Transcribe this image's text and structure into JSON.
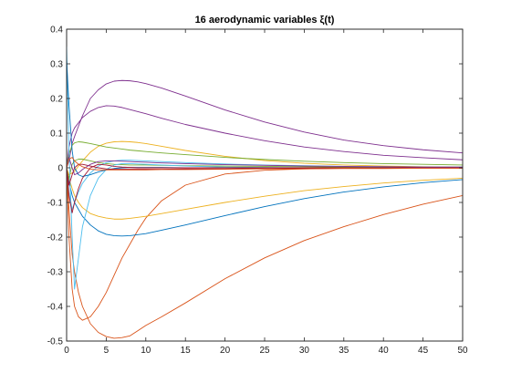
{
  "chart_data": {
    "type": "line",
    "title": "16 aerodynamic variables ξ(t)",
    "xlabel": "",
    "ylabel": "",
    "xlim": [
      0,
      50
    ],
    "ylim": [
      -0.5,
      0.4
    ],
    "xticks": [
      0,
      5,
      10,
      15,
      20,
      25,
      30,
      35,
      40,
      45,
      50
    ],
    "yticks": [
      -0.5,
      -0.4,
      -0.3,
      -0.2,
      -0.1,
      0,
      0.1,
      0.2,
      0.3,
      0.4
    ],
    "xtick_labels": [
      "0",
      "5",
      "10",
      "15",
      "20",
      "25",
      "30",
      "35",
      "40",
      "45",
      "50"
    ],
    "ytick_labels": [
      "-0.5",
      "-0.4",
      "-0.3",
      "-0.2",
      "-0.1",
      "0",
      "0.1",
      "0.2",
      "0.3",
      "0.4"
    ],
    "grid": false,
    "legend": "none",
    "x": [
      0,
      0.3,
      0.7,
      1,
      1.5,
      2,
      3,
      4,
      5,
      6,
      7,
      8,
      9,
      10,
      12,
      15,
      20,
      25,
      30,
      35,
      40,
      45,
      50
    ],
    "series": [
      {
        "color": "#7E2F8E",
        "values": [
          0.0,
          0.02,
          0.07,
          0.09,
          0.12,
          0.15,
          0.2,
          0.225,
          0.242,
          0.25,
          0.252,
          0.251,
          0.248,
          0.243,
          0.23,
          0.207,
          0.167,
          0.132,
          0.103,
          0.08,
          0.064,
          0.052,
          0.043
        ]
      },
      {
        "color": "#7E2F8E",
        "values": [
          0.0,
          0.06,
          0.1,
          0.115,
          0.13,
          0.145,
          0.163,
          0.174,
          0.179,
          0.178,
          0.174,
          0.168,
          0.162,
          0.156,
          0.143,
          0.125,
          0.1,
          0.078,
          0.06,
          0.047,
          0.036,
          0.029,
          0.023
        ]
      },
      {
        "color": "#D95319",
        "values": [
          0.0,
          -0.12,
          -0.25,
          -0.3,
          -0.36,
          -0.4,
          -0.45,
          -0.475,
          -0.487,
          -0.492,
          -0.49,
          -0.485,
          -0.47,
          -0.455,
          -0.43,
          -0.39,
          -0.32,
          -0.26,
          -0.21,
          -0.17,
          -0.135,
          -0.105,
          -0.08
        ]
      },
      {
        "color": "#D95319",
        "values": [
          0.0,
          -0.2,
          -0.35,
          -0.4,
          -0.43,
          -0.44,
          -0.43,
          -0.4,
          -0.36,
          -0.31,
          -0.26,
          -0.22,
          -0.18,
          -0.145,
          -0.095,
          -0.05,
          -0.018,
          -0.007,
          -0.003,
          -0.001,
          0.0,
          0.0,
          0.0
        ]
      },
      {
        "color": "#0072BD",
        "values": [
          0.0,
          -0.04,
          -0.08,
          -0.1,
          -0.12,
          -0.14,
          -0.165,
          -0.182,
          -0.192,
          -0.196,
          -0.197,
          -0.196,
          -0.193,
          -0.19,
          -0.18,
          -0.165,
          -0.138,
          -0.112,
          -0.089,
          -0.07,
          -0.055,
          -0.043,
          -0.034
        ]
      },
      {
        "color": "#EDB120",
        "values": [
          0.0,
          -0.03,
          -0.06,
          -0.08,
          -0.1,
          -0.115,
          -0.132,
          -0.14,
          -0.145,
          -0.148,
          -0.148,
          -0.146,
          -0.143,
          -0.14,
          -0.132,
          -0.12,
          -0.1,
          -0.082,
          -0.066,
          -0.054,
          -0.044,
          -0.036,
          -0.03
        ]
      },
      {
        "color": "#EDB120",
        "values": [
          0.0,
          -0.02,
          -0.015,
          -0.01,
          0.005,
          0.02,
          0.045,
          0.062,
          0.071,
          0.075,
          0.076,
          0.075,
          0.073,
          0.07,
          0.062,
          0.05,
          0.033,
          0.021,
          0.013,
          0.008,
          0.005,
          0.003,
          0.002
        ]
      },
      {
        "color": "#77AC30",
        "values": [
          0.0,
          0.04,
          0.065,
          0.072,
          0.075,
          0.074,
          0.07,
          0.065,
          0.06,
          0.057,
          0.054,
          0.051,
          0.049,
          0.047,
          0.043,
          0.038,
          0.03,
          0.024,
          0.019,
          0.015,
          0.012,
          0.01,
          0.008
        ]
      },
      {
        "color": "#77AC30",
        "values": [
          0.0,
          -0.03,
          0.01,
          0.02,
          0.025,
          0.025,
          0.02,
          0.015,
          0.012,
          0.01,
          0.009,
          0.008,
          0.008,
          0.008,
          0.007,
          0.006,
          0.005,
          0.004,
          0.003,
          0.002,
          0.002,
          0.001,
          0.001
        ]
      },
      {
        "color": "#4DBEEE",
        "values": [
          0.35,
          0.05,
          -0.2,
          -0.35,
          -0.26,
          -0.17,
          -0.08,
          -0.03,
          -0.005,
          0.008,
          0.012,
          0.012,
          0.011,
          0.01,
          0.008,
          0.005,
          0.002,
          0.001,
          0.0,
          0.0,
          0.0,
          0.0,
          0.0
        ]
      },
      {
        "color": "#4DBEEE",
        "values": [
          0.0,
          -0.07,
          -0.12,
          -0.1,
          -0.07,
          -0.045,
          -0.015,
          0.005,
          0.015,
          0.02,
          0.022,
          0.022,
          0.021,
          0.02,
          0.018,
          0.015,
          0.011,
          0.008,
          0.006,
          0.004,
          0.003,
          0.002,
          0.002
        ]
      },
      {
        "color": "#0072BD",
        "values": [
          0.31,
          0.18,
          0.05,
          0.0,
          -0.02,
          -0.025,
          -0.02,
          -0.012,
          -0.006,
          -0.002,
          0.0,
          0.001,
          0.001,
          0.001,
          0.001,
          0.0,
          0.0,
          0.0,
          0.0,
          0.0,
          0.0,
          0.0,
          0.0
        ]
      },
      {
        "color": "#A2142F",
        "values": [
          0.0,
          -0.08,
          -0.13,
          -0.1,
          -0.06,
          -0.03,
          0.0,
          0.01,
          0.008,
          0.004,
          0.002,
          0.001,
          0.0,
          0.0,
          0.0,
          0.0,
          0.0,
          0.0,
          0.0,
          0.0,
          0.0,
          0.0,
          0.0
        ]
      },
      {
        "color": "#A2142F",
        "values": [
          0.0,
          -0.05,
          -0.02,
          0.0,
          0.01,
          0.01,
          0.005,
          0.0,
          -0.003,
          -0.004,
          -0.004,
          -0.004,
          -0.004,
          -0.004,
          -0.004,
          -0.003,
          -0.003,
          -0.002,
          -0.002,
          -0.001,
          -0.001,
          -0.001,
          -0.001
        ]
      },
      {
        "color": "#7E2F8E",
        "values": [
          0.0,
          0.03,
          0.0,
          -0.02,
          -0.015,
          -0.005,
          0.01,
          0.018,
          0.02,
          0.02,
          0.019,
          0.018,
          0.017,
          0.016,
          0.014,
          0.012,
          0.009,
          0.007,
          0.005,
          0.004,
          0.003,
          0.002,
          0.002
        ]
      },
      {
        "color": "#D95319",
        "values": [
          0.0,
          0.025,
          0.03,
          0.02,
          0.01,
          0.003,
          -0.004,
          -0.006,
          -0.006,
          -0.006,
          -0.006,
          -0.006,
          -0.006,
          -0.006,
          -0.005,
          -0.005,
          -0.004,
          -0.003,
          -0.003,
          -0.002,
          -0.002,
          -0.001,
          -0.001
        ]
      }
    ]
  }
}
